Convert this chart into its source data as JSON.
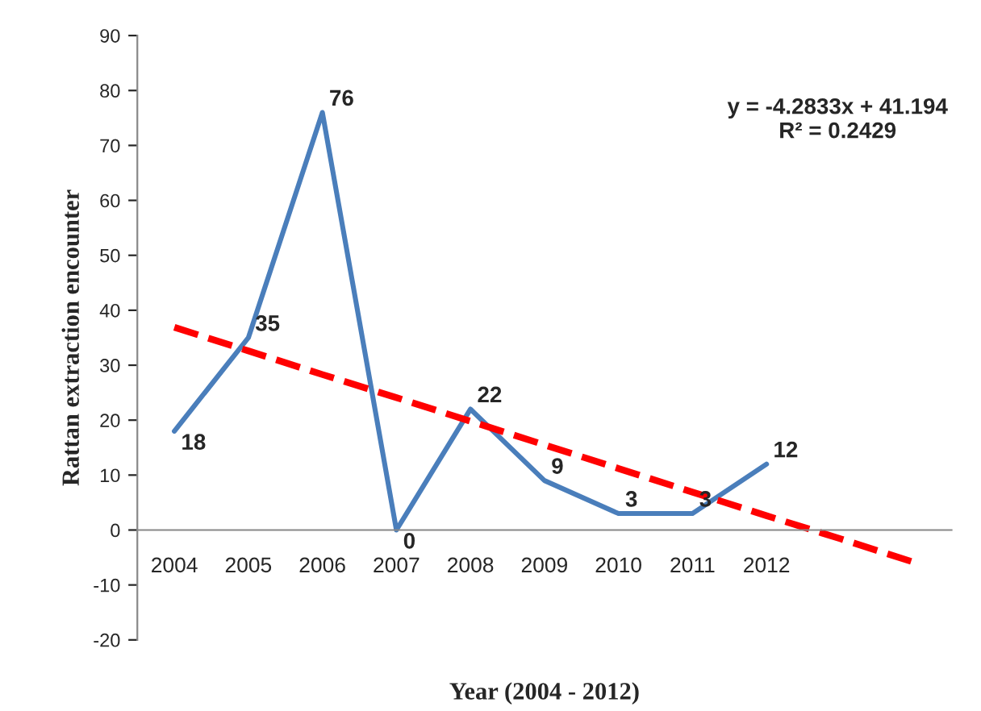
{
  "chart_data": {
    "type": "line",
    "xlabel": "Year (2004 - 2012)",
    "ylabel": "Rattan extraction encounter",
    "categories": [
      "2004",
      "2005",
      "2006",
      "2007",
      "2008",
      "2009",
      "2010",
      "2011",
      "2012",
      null,
      null
    ],
    "series": [
      {
        "color": "#4a7ebb",
        "values": [
          18,
          35,
          76,
          0,
          22,
          9,
          3,
          3,
          12,
          null,
          null
        ],
        "data_labels": true,
        "line_style": "solid"
      },
      {
        "color": "#ff0000",
        "values": [
          36.9,
          32.6,
          28.3,
          24.1,
          19.8,
          15.5,
          11.2,
          6.9,
          2.6,
          -1.6,
          -5.9
        ],
        "line_style": "dashed"
      }
    ],
    "ylim": [
      -20,
      90
    ],
    "yticks": [
      -20,
      -10,
      0,
      10,
      20,
      30,
      40,
      50,
      60,
      70,
      80,
      90
    ],
    "annotations": [
      "y = -4.2833x + 41.194\nR² = 0.2429"
    ],
    "grid": false,
    "legend": false,
    "marker": "none"
  }
}
